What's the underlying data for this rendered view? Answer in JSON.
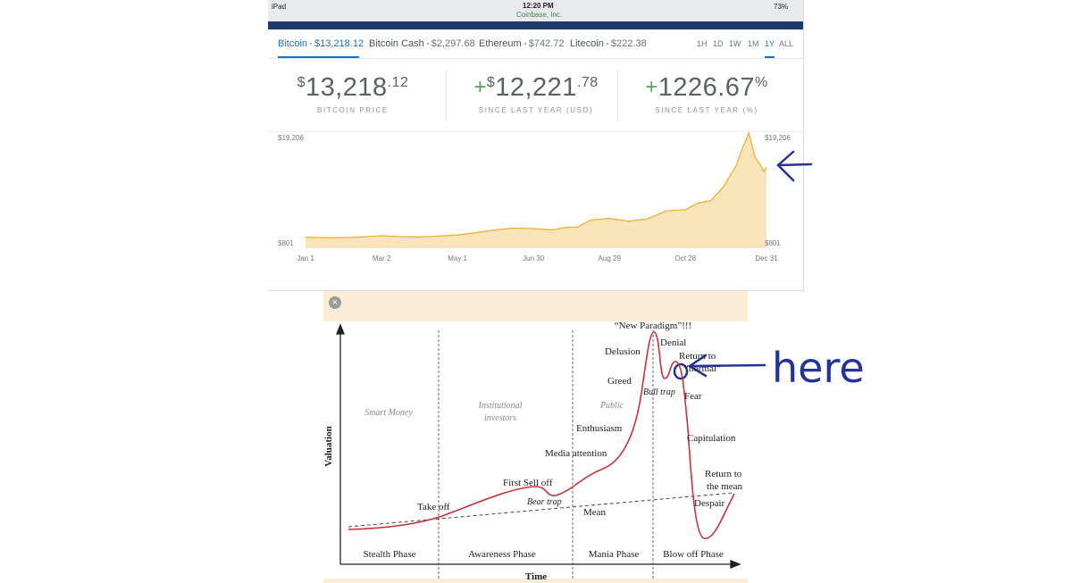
{
  "status_bar": {
    "device": "iPad",
    "time": "12:20 PM",
    "site": "Coinbase, Inc.",
    "battery": "73%"
  },
  "tabs": [
    {
      "name": "Bitcoin",
      "price": "$13,218.12"
    },
    {
      "name": "Bitcoin Cash",
      "price": "$2,297.68"
    },
    {
      "name": "Ethereum",
      "price": "$742.72"
    },
    {
      "name": "Litecoin",
      "price": "$222.38"
    }
  ],
  "ranges": [
    "1H",
    "1D",
    "1W",
    "1M",
    "1Y",
    "ALL"
  ],
  "active_range": "1Y",
  "stats": [
    {
      "prefix": "$",
      "main": "13,218",
      "suffix": ".12",
      "label": "BITCOIN PRICE"
    },
    {
      "sign": "+",
      "prefix": "$",
      "main": "12,221",
      "suffix": ".78",
      "label": "SINCE LAST YEAR (USD)"
    },
    {
      "sign": "+",
      "main": "1226.67",
      "suffix": "%",
      "label": "SINCE LAST YEAR (%)"
    }
  ],
  "chart_data": {
    "type": "area",
    "color": "#f0b43c",
    "x": [
      0,
      20,
      40,
      60,
      75,
      90,
      105,
      120,
      135,
      150,
      165,
      180,
      195,
      205,
      215,
      225,
      240,
      255,
      270,
      285,
      300,
      310,
      320,
      330,
      340,
      345,
      350,
      355,
      358,
      362,
      364
    ],
    "values": [
      998,
      900,
      1000,
      1250,
      1100,
      1050,
      1200,
      1400,
      1800,
      2300,
      2600,
      2500,
      2300,
      2700,
      2800,
      4000,
      4300,
      3800,
      4200,
      5600,
      5800,
      7000,
      7400,
      9800,
      13500,
      16500,
      19206,
      15000,
      14000,
      12500,
      13218
    ],
    "xlim": [
      0,
      364
    ],
    "xticks": [
      {
        "value": 0,
        "label": "Jan 1"
      },
      {
        "value": 60,
        "label": "Mar 2"
      },
      {
        "value": 120,
        "label": "May 1"
      },
      {
        "value": 180,
        "label": "Jun 30"
      },
      {
        "value": 240,
        "label": "Aug 29"
      },
      {
        "value": 300,
        "label": "Oct 28"
      },
      {
        "value": 364,
        "label": "Dec 31"
      }
    ],
    "ylim": [
      801,
      19206
    ],
    "yticks": [
      {
        "value": 19206,
        "label": "$19,206"
      },
      {
        "value": 801,
        "label": "$801"
      }
    ]
  },
  "annotation": "here",
  "diagram": {
    "y_axis": "Valuation",
    "x_axis": "Time",
    "phases": [
      "Stealth Phase",
      "Awareness Phase",
      "Mania Phase",
      "Blow off Phase"
    ],
    "groups": [
      "Smart Money",
      "Institutional",
      "investors",
      "Public"
    ],
    "labels": [
      "“New Paradigm”!!!",
      "Denial",
      "Delusion",
      "Return to",
      "“normal”",
      "Greed",
      "Bull trap",
      "Fear",
      "Enthusiasm",
      "Capitulation",
      "Media attention",
      "Return to",
      "the mean",
      "First Sell off",
      "Bear trap",
      "Take off",
      "Mean",
      "Despair"
    ]
  }
}
